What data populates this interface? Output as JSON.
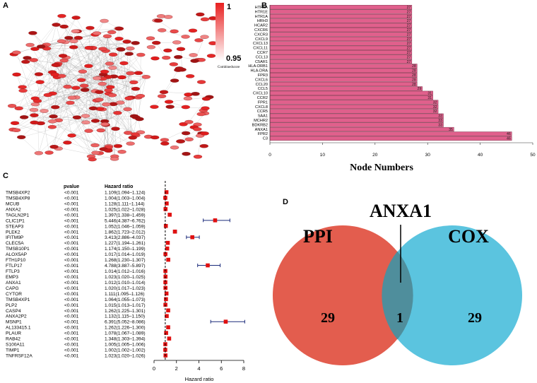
{
  "panels": {
    "a": "A",
    "b": "B",
    "c": "C",
    "d": "D"
  },
  "colors": {
    "bar_fill": "#e0608c",
    "node_fill": "#e02a2a",
    "hr_marker": "#e01010",
    "ci_line": "#1a2a7a",
    "venn_left": "#e35d4e",
    "venn_right": "#5bc4df",
    "venn_overlap": "#4f8e9c"
  },
  "network": {
    "legend_max": "1",
    "legend_min": "0.95",
    "legend_label": "Combinedscore"
  },
  "chart_data": [
    {
      "id": "B",
      "type": "bar",
      "orientation": "horizontal",
      "title": "",
      "xlabel": "Node Numbers",
      "ylabel": "",
      "xlim": [
        0,
        50
      ],
      "xticks": [
        "0",
        "10",
        "20",
        "30",
        "40",
        "50"
      ],
      "categories": [
        "HTR5A",
        "HTR1E",
        "HTR1A",
        "HRH3",
        "HCAR2",
        "CXCR6",
        "CXCR3",
        "CXCL9",
        "CXCL13",
        "CXCL11",
        "CCR7",
        "CCL13",
        "C5AR1",
        "HLA-DRB1",
        "HLA-DRA",
        "FPR3",
        "CXCL6",
        "CCL20",
        "CCL5",
        "CXCL10",
        "CCR2",
        "FPR1",
        "CXCL8",
        "CCR5",
        "SAA1",
        "MCHR2",
        "BDKRB2",
        "ANXA1",
        "FPR2",
        "C3"
      ],
      "values": [
        27,
        27,
        27,
        27,
        27,
        27,
        27,
        27,
        27,
        27,
        27,
        27,
        27,
        28,
        28,
        28,
        28,
        28,
        29,
        31,
        31,
        32,
        32,
        32,
        33,
        33,
        33,
        35,
        46,
        46
      ],
      "value_labels": [
        "27",
        "27",
        "27",
        "27",
        "27",
        "27",
        "27",
        "27",
        "27",
        "27",
        "27",
        "27",
        "27",
        "28",
        "28",
        "28",
        "28",
        "28",
        "29",
        "31",
        "31",
        "32",
        "32",
        "32",
        "33",
        "33",
        "33",
        "35",
        "46",
        "46"
      ]
    },
    {
      "id": "C",
      "type": "forest",
      "xlabel": "Hazard ratio",
      "xlim": [
        0,
        8
      ],
      "xticks": [
        "0",
        "2",
        "4",
        "6",
        "8"
      ],
      "reference_line": 1,
      "header_pvalue": "pvalue",
      "header_hr": "Hazard ratio",
      "rows": [
        {
          "gene": "TMSB4XP2",
          "p": "<0.001",
          "text": "1.109(1.094–1.124)",
          "hr": 1.109,
          "lo": 1.094,
          "hi": 1.124
        },
        {
          "gene": "TMSB4XP8",
          "p": "<0.001",
          "text": "1.004(1.003–1.004)",
          "hr": 1.004,
          "lo": 1.003,
          "hi": 1.004
        },
        {
          "gene": "MCUB",
          "p": "<0.001",
          "text": "1.128(1.111–1.144)",
          "hr": 1.128,
          "lo": 1.111,
          "hi": 1.144
        },
        {
          "gene": "ANXA2",
          "p": "<0.001",
          "text": "1.025(1.022–1.028)",
          "hr": 1.025,
          "lo": 1.022,
          "hi": 1.028
        },
        {
          "gene": "TAGLN2P1",
          "p": "<0.001",
          "text": "1.397(1.338–1.459)",
          "hr": 1.397,
          "lo": 1.338,
          "hi": 1.459
        },
        {
          "gene": "CLIC1P1",
          "p": "<0.001",
          "text": "5.446(4.387–6.762)",
          "hr": 5.446,
          "lo": 4.387,
          "hi": 6.762
        },
        {
          "gene": "STEAP3",
          "p": "<0.001",
          "text": "1.052(1.046–1.059)",
          "hr": 1.052,
          "lo": 1.046,
          "hi": 1.059
        },
        {
          "gene": "PLEK2",
          "p": "<0.001",
          "text": "1.862(1.723–2.012)",
          "hr": 1.862,
          "lo": 1.723,
          "hi": 2.012
        },
        {
          "gene": "IFITM9P",
          "p": "<0.001",
          "text": "3.413(2.886–4.037)",
          "hr": 3.413,
          "lo": 2.886,
          "hi": 4.037
        },
        {
          "gene": "CLEC5A",
          "p": "<0.001",
          "text": "1.227(1.194–1.261)",
          "hr": 1.227,
          "lo": 1.194,
          "hi": 1.261
        },
        {
          "gene": "TMSB10P1",
          "p": "<0.001",
          "text": "1.174(1.150–1.199)",
          "hr": 1.174,
          "lo": 1.15,
          "hi": 1.199
        },
        {
          "gene": "ALOX5AP",
          "p": "<0.001",
          "text": "1.017(1.014–1.019)",
          "hr": 1.017,
          "lo": 1.014,
          "hi": 1.019
        },
        {
          "gene": "FTH1P10",
          "p": "<0.001",
          "text": "1.268(1.230–1.307)",
          "hr": 1.268,
          "lo": 1.23,
          "hi": 1.307
        },
        {
          "gene": "FTLP17",
          "p": "<0.001",
          "text": "4.788(3.887–5.897)",
          "hr": 4.788,
          "lo": 3.887,
          "hi": 5.897
        },
        {
          "gene": "FTLP3",
          "p": "<0.001",
          "text": "1.014(1.012–1.016)",
          "hr": 1.014,
          "lo": 1.012,
          "hi": 1.016
        },
        {
          "gene": "EMP3",
          "p": "<0.001",
          "text": "1.023(1.020–1.025)",
          "hr": 1.023,
          "lo": 1.02,
          "hi": 1.025
        },
        {
          "gene": "ANXA1",
          "p": "<0.001",
          "text": "1.012(1.010–1.014)",
          "hr": 1.012,
          "lo": 1.01,
          "hi": 1.014
        },
        {
          "gene": "CAPG",
          "p": "<0.001",
          "text": "1.020(1.017–1.023)",
          "hr": 1.02,
          "lo": 1.017,
          "hi": 1.023
        },
        {
          "gene": "CYTOR",
          "p": "<0.001",
          "text": "1.111(1.095–1.126)",
          "hr": 1.111,
          "lo": 1.095,
          "hi": 1.126
        },
        {
          "gene": "TMSB4XP1",
          "p": "<0.001",
          "text": "1.064(1.055–1.073)",
          "hr": 1.064,
          "lo": 1.055,
          "hi": 1.073
        },
        {
          "gene": "PLP2",
          "p": "<0.001",
          "text": "1.015(1.013–1.017)",
          "hr": 1.015,
          "lo": 1.013,
          "hi": 1.017
        },
        {
          "gene": "CASP4",
          "p": "<0.001",
          "text": "1.262(1.225–1.301)",
          "hr": 1.262,
          "lo": 1.225,
          "hi": 1.301
        },
        {
          "gene": "ANXA2P2",
          "p": "<0.001",
          "text": "1.132(1.115–1.150)",
          "hr": 1.132,
          "lo": 1.115,
          "hi": 1.15
        },
        {
          "gene": "MSNP1",
          "p": "<0.001",
          "text": "6.391(5.052–8.086)",
          "hr": 6.391,
          "lo": 5.052,
          "hi": 8.086
        },
        {
          "gene": "AL133415.1",
          "p": "<0.001",
          "text": "1.262(1.226–1.300)",
          "hr": 1.262,
          "lo": 1.226,
          "hi": 1.3
        },
        {
          "gene": "PLAUR",
          "p": "<0.001",
          "text": "1.078(1.067–1.089)",
          "hr": 1.078,
          "lo": 1.067,
          "hi": 1.089
        },
        {
          "gene": "RAB42",
          "p": "<0.001",
          "text": "1.348(1.303–1.394)",
          "hr": 1.348,
          "lo": 1.303,
          "hi": 1.394
        },
        {
          "gene": "S100A11",
          "p": "<0.001",
          "text": "1.005(1.005–1.006)",
          "hr": 1.005,
          "lo": 1.005,
          "hi": 1.006
        },
        {
          "gene": "TIMP1",
          "p": "<0.001",
          "text": "1.002(1.002–1.002)",
          "hr": 1.002,
          "lo": 1.002,
          "hi": 1.002
        },
        {
          "gene": "TNFRSF12A",
          "p": "<0.001",
          "text": "1.023(1.020–1.026)",
          "hr": 1.023,
          "lo": 1.02,
          "hi": 1.026
        }
      ]
    },
    {
      "id": "D",
      "type": "venn",
      "title": "ANXA1",
      "sets": [
        {
          "name": "PPI",
          "only": 29
        },
        {
          "name": "COX",
          "only": 29
        }
      ],
      "intersection": 1
    }
  ]
}
